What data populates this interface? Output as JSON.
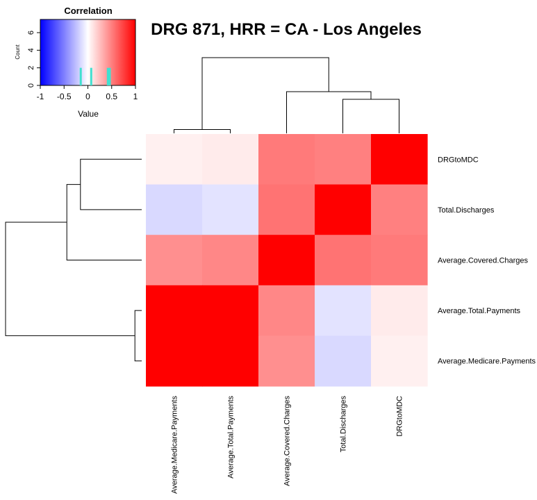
{
  "chart_data": {
    "type": "heatmap",
    "title": "DRG 871, HRR = CA - Los Angeles",
    "rows": [
      "DRGtoMDC",
      "Total.Discharges",
      "Average.Covered.Charges",
      "Average.Total.Payments",
      "Average.Medicare.Payments"
    ],
    "columns": [
      "Average.Medicare.Payments",
      "Average.Total.Payments",
      "Average.Covered.Charges",
      "Total.Discharges",
      "DRGtoMDC"
    ],
    "values": [
      [
        0.06,
        0.08,
        0.52,
        0.5,
        1.0
      ],
      [
        -0.15,
        -0.11,
        0.55,
        1.0,
        0.5
      ],
      [
        0.44,
        0.47,
        1.0,
        0.55,
        0.52
      ],
      [
        1.0,
        1.0,
        0.47,
        -0.11,
        0.08
      ],
      [
        1.0,
        1.0,
        0.44,
        -0.15,
        0.06
      ]
    ],
    "color_scale": {
      "low": "#0000ff",
      "mid": "#ffffff",
      "high": "#ff0000",
      "range": [
        -1,
        1
      ]
    },
    "color_key": {
      "title": "Correlation",
      "xlabel": "Value",
      "ylabel": "Count",
      "x_ticks": [
        "-1",
        "-0.5",
        "0",
        "0.5",
        "1"
      ],
      "y_ticks": [
        "0",
        "2",
        "4",
        "6"
      ],
      "xlim": [
        -1,
        1
      ],
      "ylim": [
        0,
        7.5
      ],
      "histogram_color": "#40e0d0",
      "histogram": [
        {
          "x": -0.15,
          "count": 2
        },
        {
          "x": 0.07,
          "count": 2
        },
        {
          "x": 0.42,
          "count": 2
        },
        {
          "x": 0.46,
          "count": 2
        }
      ]
    },
    "row_dendrogram": [
      {
        "from": [
          0,
          1
        ],
        "height": 0.45
      },
      {
        "from": [
          -1,
          2
        ],
        "height": 0.55
      },
      {
        "from": [
          3,
          4
        ],
        "height": 0.05
      },
      {
        "from": [
          -2,
          -3
        ],
        "height": 1.0
      }
    ],
    "col_dendrogram": [
      {
        "from": [
          3,
          4
        ],
        "height": 0.45
      },
      {
        "from": [
          2,
          -1
        ],
        "height": 0.55
      },
      {
        "from": [
          0,
          1
        ],
        "height": 0.05
      },
      {
        "from": [
          -3,
          -2
        ],
        "height": 1.0
      }
    ]
  }
}
